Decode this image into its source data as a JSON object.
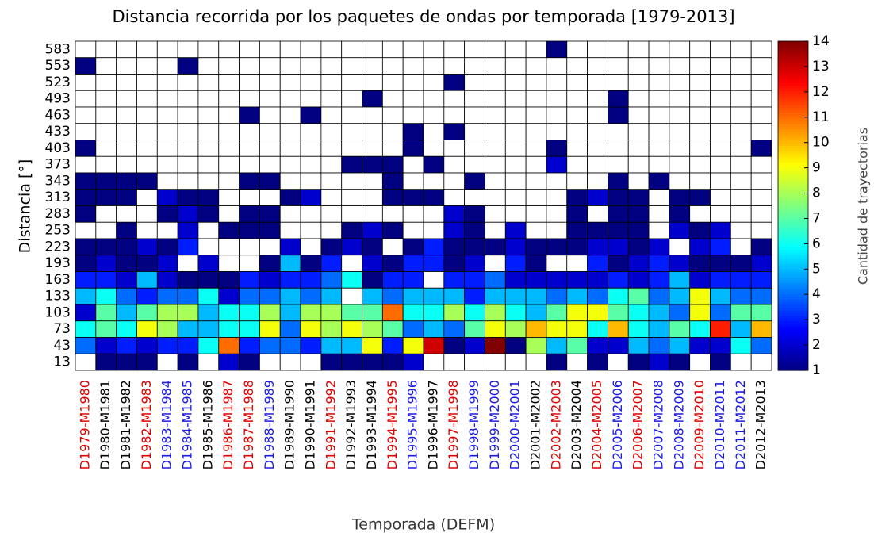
{
  "chart_data": {
    "type": "heatmap",
    "title": "Distancia recorrida por los paquetes de ondas por temporada [1979-2013]",
    "x_label": "Temporada (DEFM)",
    "y_label": "Distancia [°]",
    "colorbar_label": "Cantidad de trayectorias",
    "categories": [
      "D1979-M1980",
      "D1980-M1981",
      "D1981-M1982",
      "D1982-M1983",
      "D1983-M1984",
      "D1984-M1985",
      "D1985-M1986",
      "D1986-M1987",
      "D1987-M1988",
      "D1988-M1989",
      "D1989-M1990",
      "D1990-M1991",
      "D1991-M1992",
      "D1992-M1993",
      "D1993-M1994",
      "D1994-M1995",
      "D1995-M1996",
      "D1996-M1997",
      "D1997-M1998",
      "D1998-M1999",
      "D1999-M2000",
      "D2000-M2001",
      "D2001-M2002",
      "D2002-M2003",
      "D2003-M2004",
      "D2004-M2005",
      "D2005-M2006",
      "D2006-M2007",
      "D2007-M2008",
      "D2008-M2009",
      "D2009-M2010",
      "D2010-M2011",
      "D2011-M2012",
      "D2012-M2013"
    ],
    "category_colors": [
      "#e00000",
      "#000000",
      "#000000",
      "#e00000",
      "#1a1ae6",
      "#1a1ae6",
      "#000000",
      "#e00000",
      "#e00000",
      "#1a1ae6",
      "#000000",
      "#000000",
      "#e00000",
      "#000000",
      "#000000",
      "#e00000",
      "#1a1ae6",
      "#000000",
      "#e00000",
      "#1a1ae6",
      "#1a1ae6",
      "#1a1ae6",
      "#000000",
      "#e00000",
      "#000000",
      "#e00000",
      "#1a1ae6",
      "#e00000",
      "#1a1ae6",
      "#1a1ae6",
      "#e00000",
      "#1a1ae6",
      "#1a1ae6",
      "#000000"
    ],
    "y_categories": [
      583,
      553,
      523,
      493,
      463,
      433,
      403,
      373,
      343,
      313,
      283,
      253,
      223,
      193,
      163,
      133,
      103,
      73,
      43,
      13
    ],
    "values": [
      [
        null,
        null,
        null,
        null,
        null,
        null,
        null,
        null,
        null,
        null,
        null,
        null,
        null,
        null,
        null,
        null,
        null,
        null,
        null,
        null,
        null,
        null,
        null,
        1,
        null,
        null,
        null,
        null,
        null,
        null,
        null,
        null,
        null,
        null
      ],
      [
        1,
        null,
        null,
        null,
        null,
        1,
        null,
        null,
        null,
        null,
        null,
        null,
        null,
        null,
        null,
        null,
        null,
        null,
        null,
        null,
        null,
        null,
        null,
        null,
        null,
        null,
        null,
        null,
        null,
        null,
        null,
        null,
        null,
        null
      ],
      [
        null,
        null,
        null,
        null,
        null,
        null,
        null,
        null,
        null,
        null,
        null,
        null,
        null,
        null,
        null,
        null,
        null,
        null,
        1,
        null,
        null,
        null,
        null,
        null,
        null,
        null,
        null,
        null,
        null,
        null,
        null,
        null,
        null,
        null
      ],
      [
        null,
        null,
        null,
        null,
        null,
        null,
        null,
        null,
        null,
        null,
        null,
        null,
        null,
        null,
        1,
        null,
        null,
        null,
        null,
        null,
        null,
        null,
        null,
        null,
        null,
        null,
        1,
        null,
        null,
        null,
        null,
        null,
        null,
        null
      ],
      [
        null,
        null,
        null,
        null,
        null,
        null,
        null,
        null,
        1,
        null,
        null,
        1,
        null,
        null,
        null,
        null,
        null,
        null,
        null,
        null,
        null,
        null,
        null,
        null,
        null,
        null,
        1,
        null,
        null,
        null,
        null,
        null,
        null,
        null
      ],
      [
        null,
        null,
        null,
        null,
        null,
        null,
        null,
        null,
        null,
        null,
        null,
        null,
        null,
        null,
        null,
        null,
        1,
        null,
        1,
        null,
        null,
        null,
        null,
        null,
        null,
        null,
        null,
        null,
        null,
        null,
        null,
        null,
        null,
        null
      ],
      [
        1,
        null,
        null,
        null,
        null,
        null,
        null,
        null,
        null,
        null,
        null,
        null,
        null,
        null,
        null,
        null,
        1,
        null,
        null,
        null,
        null,
        null,
        null,
        1,
        null,
        null,
        null,
        null,
        null,
        null,
        null,
        null,
        null,
        1
      ],
      [
        null,
        null,
        null,
        null,
        null,
        null,
        null,
        null,
        null,
        null,
        null,
        null,
        null,
        1,
        1,
        1,
        null,
        1,
        null,
        null,
        null,
        null,
        null,
        2,
        null,
        null,
        null,
        null,
        null,
        null,
        null,
        null,
        null,
        null
      ],
      [
        1,
        1,
        1,
        1,
        null,
        null,
        null,
        null,
        1,
        1,
        null,
        null,
        null,
        null,
        null,
        1,
        null,
        null,
        null,
        1,
        null,
        null,
        null,
        null,
        null,
        null,
        1,
        null,
        1,
        null,
        null,
        null,
        null,
        null
      ],
      [
        1,
        1,
        1,
        null,
        2,
        1,
        1,
        null,
        null,
        null,
        1,
        2,
        null,
        null,
        null,
        1,
        1,
        1,
        null,
        null,
        null,
        null,
        null,
        null,
        1,
        2,
        1,
        1,
        null,
        1,
        1,
        null,
        null,
        null
      ],
      [
        1,
        null,
        null,
        null,
        1,
        2,
        1,
        null,
        1,
        1,
        null,
        null,
        null,
        null,
        null,
        null,
        null,
        null,
        2,
        1,
        null,
        null,
        null,
        null,
        1,
        null,
        1,
        1,
        null,
        1,
        null,
        null,
        null,
        null
      ],
      [
        null,
        null,
        1,
        null,
        null,
        2,
        null,
        1,
        1,
        1,
        null,
        null,
        null,
        1,
        2,
        1,
        null,
        null,
        2,
        1,
        null,
        2,
        null,
        null,
        1,
        1,
        1,
        1,
        null,
        2,
        1,
        2,
        null,
        null
      ],
      [
        1,
        1,
        1,
        2,
        1,
        3,
        null,
        null,
        null,
        null,
        2,
        null,
        1,
        2,
        1,
        null,
        1,
        3,
        1,
        1,
        1,
        2,
        1,
        1,
        1,
        2,
        2,
        1,
        2,
        null,
        2,
        3,
        null,
        1
      ],
      [
        1,
        2,
        1,
        1,
        2,
        null,
        2,
        null,
        null,
        1,
        5,
        1,
        3,
        null,
        2,
        1,
        3,
        3,
        1,
        2,
        null,
        3,
        1,
        null,
        null,
        3,
        1,
        2,
        3,
        2,
        1,
        1,
        1,
        2
      ],
      [
        3,
        3,
        2,
        5,
        2,
        1,
        1,
        1,
        3,
        2,
        3,
        3,
        4,
        6,
        1,
        3,
        3,
        null,
        3,
        3,
        4,
        2,
        2,
        2,
        2,
        2,
        3,
        2,
        3,
        5,
        2,
        3,
        3,
        3
      ],
      [
        5,
        6,
        4,
        3,
        4,
        4,
        6,
        2,
        4,
        4,
        5,
        4,
        5,
        null,
        5,
        4,
        5,
        5,
        5,
        3,
        5,
        5,
        5,
        4,
        5,
        4,
        6,
        7,
        4,
        5,
        9,
        5,
        4,
        4
      ],
      [
        2,
        7,
        5,
        7,
        8,
        8,
        5,
        6,
        6,
        8,
        5,
        8,
        8,
        7,
        7,
        11,
        6,
        6,
        8,
        6,
        8,
        6,
        5,
        7,
        9,
        9,
        7,
        6,
        5,
        4,
        9,
        4,
        7,
        7
      ],
      [
        6,
        7,
        6,
        9,
        8,
        5,
        5,
        6,
        6,
        9,
        4,
        9,
        8,
        9,
        8,
        7,
        4,
        5,
        4,
        7,
        9,
        8,
        10,
        9,
        9,
        6,
        10,
        6,
        5,
        7,
        6,
        12,
        5,
        10
      ],
      [
        4,
        2,
        3,
        2,
        3,
        3,
        6,
        11,
        3,
        4,
        4,
        3,
        5,
        5,
        9,
        3,
        9,
        13,
        1,
        2,
        14,
        1,
        8,
        5,
        7,
        2,
        2,
        5,
        4,
        5,
        2,
        2,
        6,
        4
      ],
      [
        null,
        1,
        1,
        1,
        null,
        1,
        null,
        2,
        1,
        null,
        null,
        null,
        1,
        1,
        1,
        1,
        2,
        null,
        null,
        null,
        null,
        null,
        null,
        1,
        null,
        1,
        null,
        1,
        2,
        1,
        null,
        1,
        null,
        null
      ]
    ],
    "colormap": "jet",
    "clim": [
      1,
      14
    ],
    "colorbar_ticks": [
      1,
      2,
      3,
      4,
      5,
      6,
      7,
      8,
      9,
      10,
      11,
      12,
      13,
      14
    ]
  }
}
